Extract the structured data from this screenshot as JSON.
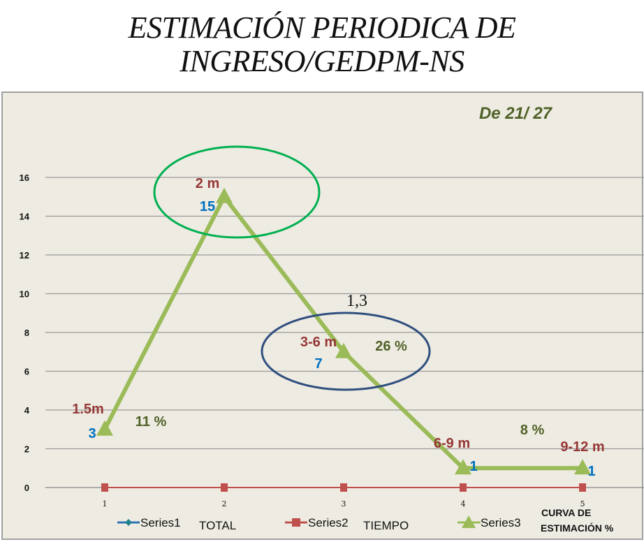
{
  "chart_data": {
    "type": "line",
    "title": [
      "ESTIMACIÓN PERIODICA DE",
      "INGRESO/GEDPM-NS"
    ],
    "subtitle": "De 21/ 27",
    "categories": [
      1,
      2,
      3,
      4,
      5
    ],
    "ylim": [
      0,
      16
    ],
    "yticks": [
      0,
      2,
      4,
      6,
      8,
      10,
      12,
      14,
      16
    ],
    "grid": true,
    "series": [
      {
        "name": "Series1",
        "values": [
          3,
          15,
          7,
          1,
          1
        ],
        "color": "#2e75b6",
        "marker": "diamond"
      },
      {
        "name": "Series2",
        "values": [
          0,
          0,
          0,
          0,
          0
        ],
        "color": "#c0504d",
        "marker": "square"
      },
      {
        "name": "Series3",
        "values": [
          3,
          15,
          7,
          1,
          1
        ],
        "color": "#9bbb59",
        "marker": "triangle"
      }
    ],
    "legend": {
      "position": "bottom",
      "entries": [
        {
          "series": "Series1",
          "extra": "TOTAL"
        },
        {
          "series": "Series2",
          "extra": "TIEMPO"
        },
        {
          "series": "Series3",
          "extra": "CURVA DE ESTIMACIÓN  %"
        }
      ]
    },
    "annotations": {
      "time_labels": [
        "1.5m",
        "2 m",
        "3-6 m",
        "6-9 m",
        "9-12 m"
      ],
      "value_labels": [
        "3",
        "15",
        "7",
        "1",
        "1"
      ],
      "percent_labels": [
        "11 %",
        "26 %",
        "8 %"
      ],
      "extra_label": "1,3"
    },
    "colors": {
      "background": "#eeebe2",
      "time_label": "#953735",
      "value_label": "#0070c0",
      "percent_label": "#4f6228",
      "green_ellipse": "#00b050",
      "blue_ellipse": "#2f4f7f"
    }
  }
}
